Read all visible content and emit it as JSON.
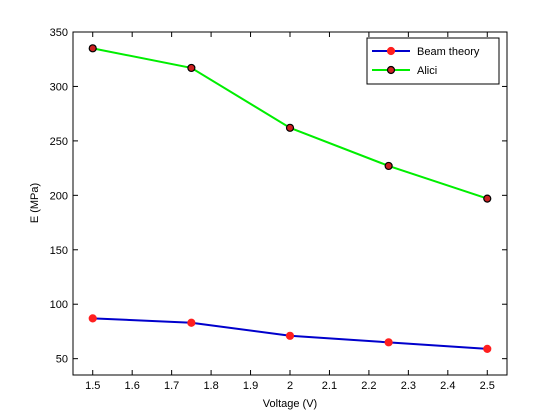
{
  "chart_data": {
    "type": "line",
    "xlabel": "Voltage (V)",
    "ylabel": "E (MPa)",
    "xlim": [
      1.45,
      2.55
    ],
    "ylim": [
      35,
      350
    ],
    "xticks": [
      1.5,
      1.6,
      1.7,
      1.8,
      1.9,
      2,
      2.1,
      2.2,
      2.3,
      2.4,
      2.5
    ],
    "xtick_labels": [
      "1.5",
      "1.6",
      "1.7",
      "1.8",
      "1.9",
      "2",
      "2.1",
      "2.2",
      "2.3",
      "2.4",
      "2.5"
    ],
    "yticks": [
      50,
      100,
      150,
      200,
      250,
      300,
      350
    ],
    "ytick_labels": [
      "50",
      "100",
      "150",
      "200",
      "250",
      "300",
      "350"
    ],
    "grid": false,
    "legend_position": "top-right",
    "series": [
      {
        "name": "Beam theory",
        "x": [
          1.5,
          1.75,
          2.0,
          2.25,
          2.5
        ],
        "y": [
          87,
          83,
          71,
          65,
          59
        ],
        "line_color": "#0000cc",
        "marker_face": "#ff1f1f",
        "marker_edge": "#ff1f1f"
      },
      {
        "name": "Alici",
        "x": [
          1.5,
          1.75,
          2.0,
          2.25,
          2.5
        ],
        "y": [
          335,
          317,
          262,
          227,
          197
        ],
        "line_color": "#00ee00",
        "marker_face": "#cc2020",
        "marker_edge": "#000000"
      }
    ]
  }
}
